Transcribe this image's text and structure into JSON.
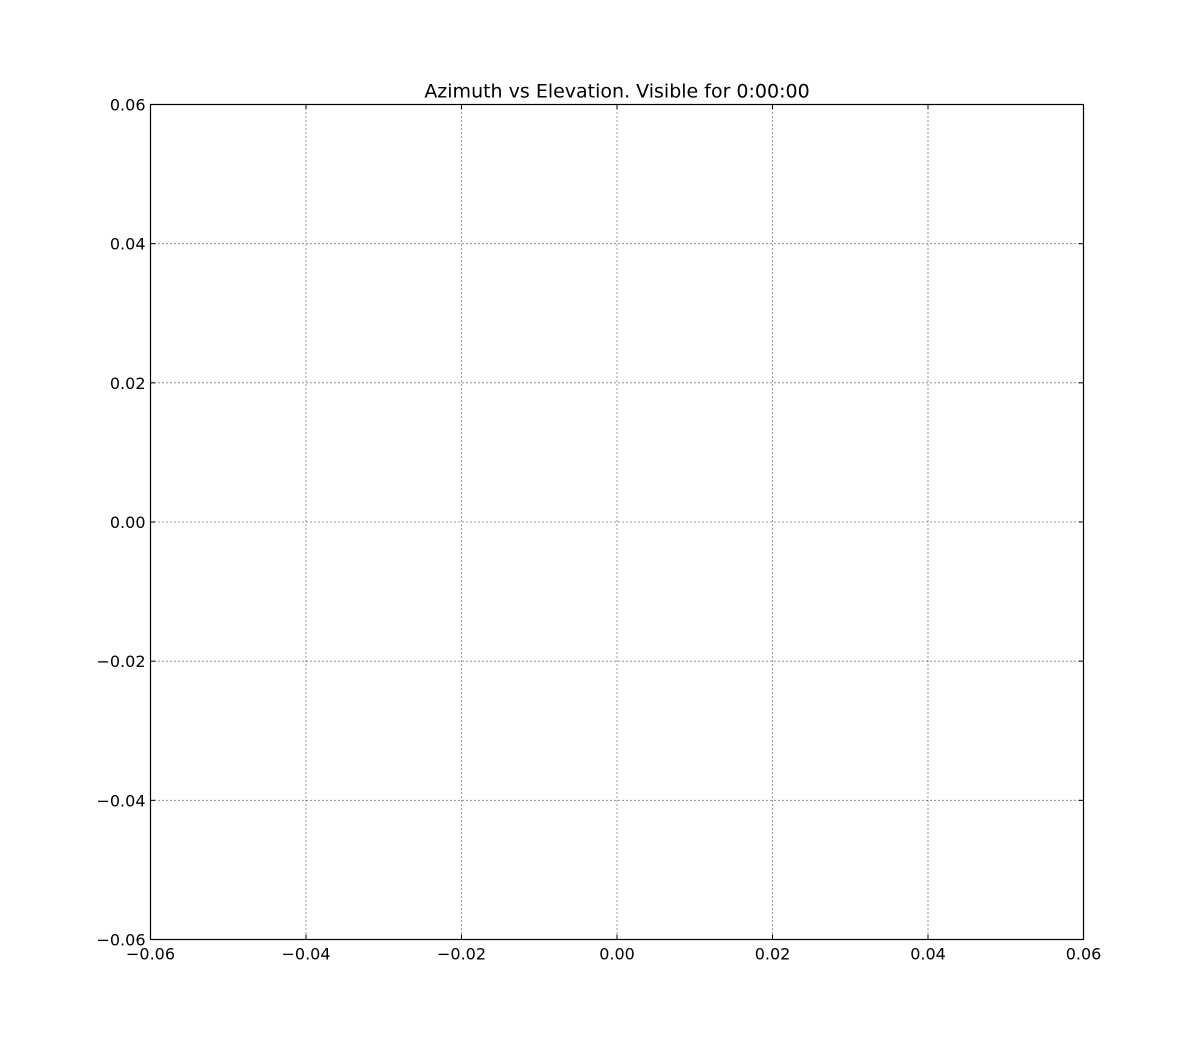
{
  "chart_data": {
    "type": "line",
    "title": "Azimuth vs Elevation. Visible for 0:00:00",
    "xlabel": "",
    "ylabel": "",
    "xlim": [
      -0.06,
      0.06
    ],
    "ylim": [
      -0.06,
      0.06
    ],
    "x_ticks": [
      -0.06,
      -0.04,
      -0.02,
      0.0,
      0.02,
      0.04,
      0.06
    ],
    "y_ticks": [
      -0.06,
      -0.04,
      -0.02,
      0.0,
      0.02,
      0.04,
      0.06
    ],
    "x_tick_labels": [
      "−0.06",
      "−0.04",
      "−0.02",
      "0.00",
      "0.02",
      "0.04",
      "0.06"
    ],
    "y_tick_labels": [
      "−0.06",
      "−0.04",
      "−0.02",
      "0.00",
      "0.02",
      "0.04",
      "0.06"
    ],
    "grid": true,
    "series": []
  }
}
